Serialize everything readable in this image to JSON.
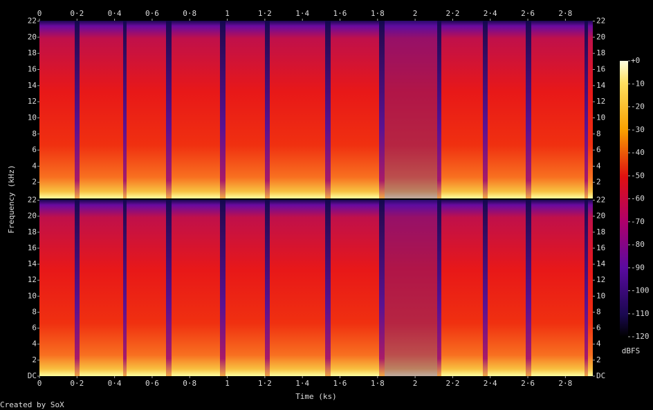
{
  "chart_data": {
    "type": "spectrogram",
    "x_label": "Time (ks)",
    "y_label": "Frequency (kHz)",
    "xlim": [
      0,
      2.946
    ],
    "xticks": [
      0,
      {
        "value": 0.2,
        "label": "0·2"
      },
      {
        "value": 0.4,
        "label": "0·4"
      },
      {
        "value": 0.6,
        "label": "0·6"
      },
      {
        "value": 0.8,
        "label": "0·8"
      },
      1,
      {
        "value": 1.2,
        "label": "1·2"
      },
      {
        "value": 1.4,
        "label": "1·4"
      },
      {
        "value": 1.6,
        "label": "1·6"
      },
      {
        "value": 1.8,
        "label": "1·8"
      },
      2,
      {
        "value": 2.2,
        "label": "2·2"
      },
      {
        "value": 2.4,
        "label": "2·4"
      },
      {
        "value": 2.6,
        "label": "2·6"
      },
      {
        "value": 2.8,
        "label": "2·8"
      }
    ],
    "ylim": [
      0,
      22.05
    ],
    "channels": [
      {
        "yticks": [
          2,
          4,
          6,
          8,
          10,
          12,
          14,
          16,
          18,
          20,
          22
        ]
      },
      {
        "yticks": [
          {
            "value": 0,
            "label": "DC"
          },
          2,
          4,
          6,
          8,
          10,
          12,
          14,
          16,
          18,
          20,
          22
        ]
      }
    ],
    "colorbar": {
      "label": "dBFS",
      "lim": [
        -120,
        0
      ],
      "ticks": [
        {
          "value": 0,
          "label": "+0"
        },
        -10,
        -20,
        -30,
        -40,
        -50,
        -60,
        -70,
        -80,
        -90,
        -100,
        -110,
        -120
      ]
    },
    "credit": "Created by SoX"
  }
}
